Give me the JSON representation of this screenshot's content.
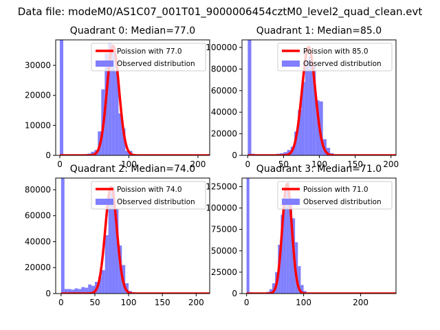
{
  "suptitle": "Data file: modeM0/AS1C07_001T01_9000006454cztM0_level2_quad_clean.evt",
  "colors": {
    "hist_fill": "#7f7fff",
    "poisson_line": "#ff0000",
    "axis": "#000000",
    "background": "#ffffff"
  },
  "chart_data": [
    {
      "type": "bar",
      "title": "Quadrant 0: Median=77.0",
      "legend_placement": "upper-right",
      "xlim": [
        -6,
        217
      ],
      "ylim": [
        0,
        38500
      ],
      "xticks": [
        0,
        100,
        200
      ],
      "yticks": [
        0,
        10000,
        20000,
        30000
      ],
      "series": [
        {
          "name": "Observed distribution",
          "bin_width": 5,
          "bins": [
            [
              0,
              38500
            ],
            [
              5,
              350
            ],
            [
              10,
              300
            ],
            [
              15,
              300
            ],
            [
              20,
              300
            ],
            [
              25,
              300
            ],
            [
              30,
              300
            ],
            [
              35,
              400
            ],
            [
              40,
              600
            ],
            [
              45,
              1200
            ],
            [
              50,
              1800
            ],
            [
              55,
              8000
            ],
            [
              60,
              22000
            ],
            [
              65,
              34000
            ],
            [
              70,
              37500
            ],
            [
              75,
              35000
            ],
            [
              80,
              28000
            ],
            [
              85,
              14000
            ],
            [
              90,
              9000
            ],
            [
              95,
              1500
            ],
            [
              100,
              1500
            ],
            [
              105,
              200
            ],
            [
              110,
              100
            ]
          ]
        },
        {
          "name": "Poission with 77.0",
          "mean": 77,
          "peak": 36500
        }
      ]
    },
    {
      "type": "bar",
      "title": "Quadrant 1: Median=85.0",
      "legend_placement": "upper-right",
      "xlim": [
        -8,
        207
      ],
      "ylim": [
        0,
        107000
      ],
      "xticks": [
        0,
        50,
        100,
        150,
        200
      ],
      "yticks": [
        0,
        20000,
        40000,
        60000,
        80000,
        100000
      ],
      "series": [
        {
          "name": "Observed distribution",
          "bin_width": 5,
          "bins": [
            [
              0,
              107000
            ],
            [
              5,
              1500
            ],
            [
              10,
              1000
            ],
            [
              15,
              1000
            ],
            [
              20,
              1000
            ],
            [
              25,
              1000
            ],
            [
              30,
              1000
            ],
            [
              35,
              1000
            ],
            [
              40,
              1500
            ],
            [
              45,
              2000
            ],
            [
              50,
              3000
            ],
            [
              55,
              5000
            ],
            [
              60,
              8000
            ],
            [
              65,
              22000
            ],
            [
              70,
              42000
            ],
            [
              75,
              68000
            ],
            [
              80,
              88000
            ],
            [
              85,
              92000
            ],
            [
              90,
              83000
            ],
            [
              95,
              51000
            ],
            [
              100,
              50000
            ],
            [
              105,
              15000
            ],
            [
              110,
              7000
            ],
            [
              115,
              2000
            ],
            [
              120,
              1000
            ]
          ]
        },
        {
          "name": "Poission with 85.0",
          "mean": 85,
          "peak": 100500
        }
      ]
    },
    {
      "type": "bar",
      "title": "Quadrant 2: Median=74.0",
      "legend_placement": "upper-right",
      "xlim": [
        -8,
        220
      ],
      "ylim": [
        0,
        89000
      ],
      "xticks": [
        0,
        50,
        100,
        150,
        200
      ],
      "yticks": [
        0,
        20000,
        40000,
        60000,
        80000
      ],
      "series": [
        {
          "name": "Observed distribution",
          "bin_width": 5,
          "bins": [
            [
              0,
              89000
            ],
            [
              5,
              3500
            ],
            [
              10,
              3500
            ],
            [
              15,
              3000
            ],
            [
              20,
              4000
            ],
            [
              25,
              3500
            ],
            [
              30,
              5000
            ],
            [
              35,
              4500
            ],
            [
              40,
              7000
            ],
            [
              45,
              6000
            ],
            [
              50,
              9000
            ],
            [
              55,
              13000
            ],
            [
              60,
              18000
            ],
            [
              65,
              45000
            ],
            [
              70,
              78000
            ],
            [
              75,
              82000
            ],
            [
              80,
              65000
            ],
            [
              85,
              37000
            ],
            [
              90,
              22000
            ],
            [
              95,
              8000
            ],
            [
              100,
              2000
            ],
            [
              105,
              1000
            ]
          ]
        },
        {
          "name": "Poission with 74.0",
          "mean": 74,
          "peak": 82000
        }
      ]
    },
    {
      "type": "bar",
      "title": "Quadrant 3: Median=71.0",
      "legend_placement": "upper-right",
      "xlim": [
        -8,
        262
      ],
      "ylim": [
        0,
        135000
      ],
      "xticks": [
        0,
        100,
        200
      ],
      "yticks": [
        0,
        25000,
        50000,
        75000,
        100000,
        125000
      ],
      "series": [
        {
          "name": "Observed distribution",
          "bin_width": 5,
          "bins": [
            [
              0,
              135000
            ],
            [
              5,
              1500
            ],
            [
              10,
              1000
            ],
            [
              15,
              1000
            ],
            [
              20,
              1000
            ],
            [
              25,
              1000
            ],
            [
              30,
              1000
            ],
            [
              35,
              2000
            ],
            [
              40,
              5000
            ],
            [
              45,
              12000
            ],
            [
              50,
              25000
            ],
            [
              55,
              57000
            ],
            [
              60,
              92000
            ],
            [
              65,
              120000
            ],
            [
              70,
              130000
            ],
            [
              75,
              112000
            ],
            [
              80,
              88000
            ],
            [
              85,
              60000
            ],
            [
              90,
              32000
            ],
            [
              95,
              10000
            ],
            [
              100,
              3000
            ],
            [
              105,
              1000
            ]
          ]
        },
        {
          "name": "Poission with 71.0",
          "mean": 71,
          "peak": 128000
        }
      ]
    }
  ]
}
